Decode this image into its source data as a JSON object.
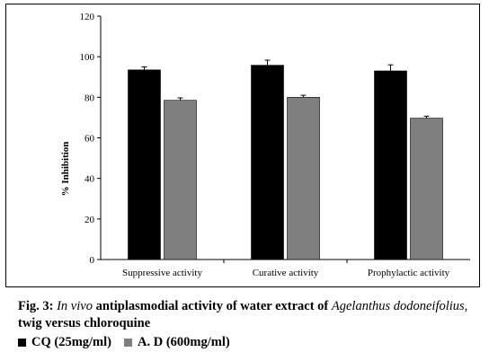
{
  "chart_data": {
    "type": "bar",
    "title": "",
    "xlabel": "",
    "ylabel": "% Inhibition",
    "ylim": [
      0,
      120
    ],
    "yticks": [
      0,
      20,
      40,
      60,
      80,
      100,
      120
    ],
    "categories": [
      "Suppressive activity",
      "Curative activity",
      "Prophylactic activity"
    ],
    "series": [
      {
        "name": "CQ (25mg/ml)",
        "color": "#000000",
        "values": [
          93.5,
          95.8,
          93.0
        ],
        "errors": [
          1.5,
          2.5,
          3.0
        ]
      },
      {
        "name": "A. D (600mg/ml)",
        "color": "#7f7f7f",
        "values": [
          78.5,
          80.0,
          69.7
        ],
        "errors": [
          1.2,
          1.0,
          1.0
        ]
      }
    ],
    "error_bars": true,
    "grid": false,
    "legend_position": "below caption"
  },
  "caption": {
    "prefix": "Fig. 3: ",
    "italic1": "In vivo",
    "mid": " antiplasmodial activity of water extract of ",
    "italic2": "Agelanthus dodoneifolius,",
    "suffix": " twig versus chloroquine"
  },
  "legend": [
    {
      "label": "CQ (25mg/ml)",
      "color": "#000000"
    },
    {
      "label": "A. D (600mg/ml)",
      "color": "#7f7f7f"
    }
  ]
}
